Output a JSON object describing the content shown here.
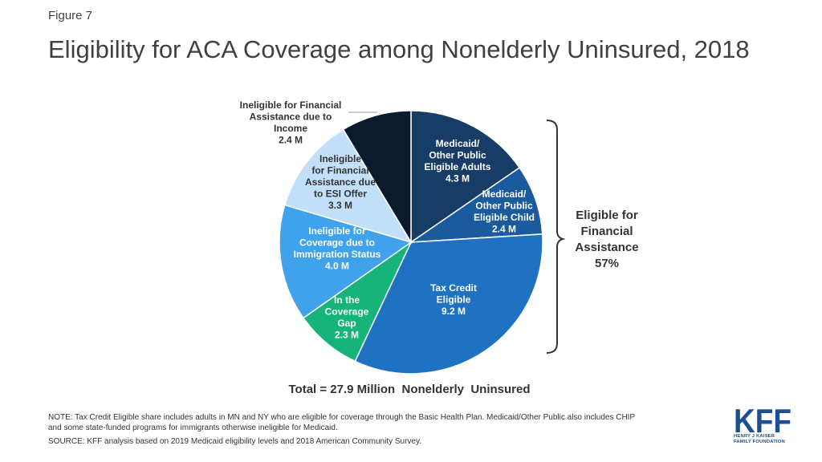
{
  "header": {
    "figure_label": "Figure 7",
    "title": "Eligibility for ACA Coverage among Nonelderly Uninsured, 2018"
  },
  "chart_data": {
    "type": "pie",
    "start_angle_deg": 0,
    "direction": "clockwise",
    "slices": [
      {
        "label_lines": [
          "Medicaid/",
          "Other Public",
          "Eligible Adults",
          "4.3 M"
        ],
        "value": 4.3,
        "color": "#173d66",
        "text_color": "#ffffff"
      },
      {
        "label_lines": [
          "Medicaid/",
          "Other Public",
          "Eligible Child",
          "2.4 M"
        ],
        "value": 2.4,
        "color": "#1a5a9d",
        "text_color": "#ffffff"
      },
      {
        "label_lines": [
          "Tax Credit",
          "Eligible",
          "9.2 M"
        ],
        "value": 9.2,
        "color": "#1f72c2",
        "text_color": "#ffffff"
      },
      {
        "label_lines": [
          "In the",
          "Coverage",
          "Gap",
          "2.3 M"
        ],
        "value": 2.3,
        "color": "#16b37a",
        "text_color": "#ffffff"
      },
      {
        "label_lines": [
          "Ineligible for",
          "Coverage due to",
          "Immigration Status",
          "4.0 M"
        ],
        "value": 4.0,
        "color": "#3fa2ea",
        "text_color": "#ffffff"
      },
      {
        "label_lines": [
          "Ineligible",
          "for Financial",
          "Assistance due",
          "to ESI Offer",
          "3.3 M"
        ],
        "value": 3.3,
        "color": "#c3e0fa",
        "text_color": "#333333"
      },
      {
        "label_lines": [
          "Ineligible for Financial",
          "Assistance due to",
          "Income",
          "2.4 M"
        ],
        "value": 2.4,
        "color": "#0b1a2c",
        "text_color": "#333333",
        "label_outside": true
      }
    ],
    "bracket_label_lines": [
      "Eligible  for",
      "Financial",
      "Assistance",
      "57%"
    ],
    "total_label": "Total = 27.9 Million  Nonelderly  Uninsured"
  },
  "footer": {
    "note_line1": "NOTE: Tax Credit Eligible share includes adults in MN and NY who are eligible for coverage through the Basic Health Plan. Medicaid/Other Public also includes CHIP",
    "note_line2": "and some state-funded programs for immigrants otherwise ineligible for Medicaid.",
    "source": "SOURCE: KFF analysis based on 2019 Medicaid eligibility levels and 2018 American Community Survey."
  },
  "logo": {
    "text": "KFF",
    "line1": "HENRY J KAISER",
    "line2": "FAMILY FOUNDATION",
    "color": "#1b4f91"
  }
}
